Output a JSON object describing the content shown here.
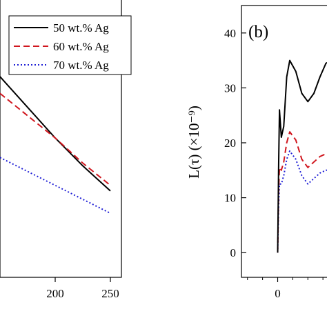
{
  "chart_data": [
    {
      "type": "line",
      "panel_label": "",
      "x_ticks": [
        200,
        250
      ],
      "xlim": [
        150,
        260
      ],
      "ylim": [
        0,
        1
      ],
      "legend": {
        "placement": "top-right"
      },
      "series": [
        {
          "name": "50 wt.% Ag",
          "color": "#000000",
          "dash": "solid",
          "x": [
            150,
            175,
            200,
            225,
            250
          ],
          "y": [
            0.72,
            0.61,
            0.5,
            0.4,
            0.31
          ]
        },
        {
          "name": "60 wt.% Ag",
          "color": "#d0161e",
          "dash": "dashed",
          "x": [
            150,
            175,
            200,
            225,
            250
          ],
          "y": [
            0.66,
            0.58,
            0.5,
            0.41,
            0.33
          ]
        },
        {
          "name": "70 wt.% Ag",
          "color": "#1f1fd6",
          "dash": "dotted",
          "x": [
            150,
            175,
            200,
            225,
            250
          ],
          "y": [
            0.43,
            0.38,
            0.33,
            0.28,
            0.23
          ]
        }
      ]
    },
    {
      "type": "line",
      "panel_label": "(b)",
      "ylabel": "L(τ) (×10⁻⁹)",
      "y_ticks": [
        0,
        10,
        20,
        30,
        40
      ],
      "ylim": [
        -4.5,
        45
      ],
      "x_ticks": [
        0
      ],
      "xlim": [
        -6,
        10
      ],
      "series": [
        {
          "name": "50 wt.% Ag",
          "color": "#000000",
          "dash": "solid",
          "x": [
            0,
            0.15,
            0.3,
            0.6,
            1,
            1.5,
            2,
            3,
            4,
            5,
            6,
            7,
            8,
            9,
            10
          ],
          "y": [
            0,
            15,
            26,
            21,
            23,
            32,
            35,
            33,
            29,
            27.5,
            29,
            32,
            34.5,
            35,
            35
          ]
        },
        {
          "name": "60 wt.% Ag",
          "color": "#d0161e",
          "dash": "dashed",
          "x": [
            0,
            0.15,
            0.3,
            0.6,
            1,
            1.5,
            2,
            3,
            4,
            5,
            6,
            7,
            8,
            10
          ],
          "y": [
            0,
            11,
            15.5,
            15,
            16.5,
            20,
            22,
            20.5,
            17,
            15.5,
            16.5,
            17.5,
            18,
            18
          ]
        },
        {
          "name": "70 wt.% Ag",
          "color": "#1f1fd6",
          "dash": "dotted",
          "x": [
            0,
            0.15,
            0.3,
            0.6,
            1,
            1.5,
            2,
            3,
            4,
            5,
            6,
            7,
            8,
            10
          ],
          "y": [
            0,
            8,
            12.5,
            12.5,
            14,
            17,
            18.5,
            17,
            14,
            12.5,
            13.5,
            14.5,
            15,
            15
          ]
        }
      ]
    }
  ]
}
